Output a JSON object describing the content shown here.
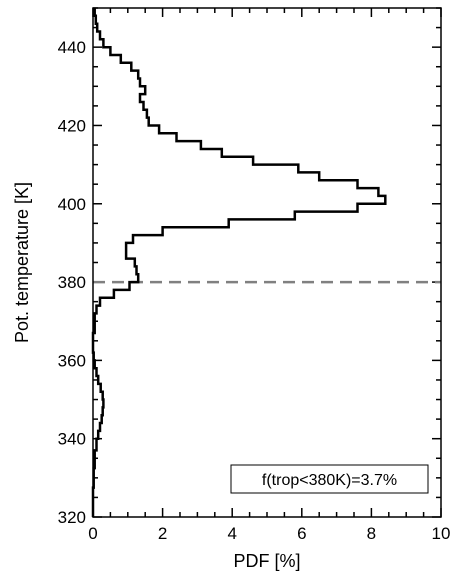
{
  "chart_data": {
    "type": "line",
    "title": "",
    "xlabel": "PDF [%]",
    "ylabel": "Pot. temperature [K]",
    "xlim": [
      0,
      10
    ],
    "ylim": [
      320,
      450
    ],
    "x_ticks": [
      0,
      2,
      4,
      6,
      8,
      10
    ],
    "x_tick_labels": [
      "0",
      "2",
      "4",
      "6",
      "8",
      "10"
    ],
    "y_ticks": [
      320,
      340,
      360,
      380,
      400,
      420,
      440
    ],
    "y_tick_labels": [
      "320",
      "340",
      "360",
      "380",
      "400",
      "420",
      "440"
    ],
    "grid": false,
    "series": [
      {
        "style": "step",
        "color": "#000000",
        "points": [
          {
            "theta": 320,
            "pdf": 0.0
          },
          {
            "theta": 325,
            "pdf": 0.0
          },
          {
            "theta": 330,
            "pdf": 0.02
          },
          {
            "theta": 335,
            "pdf": 0.05
          },
          {
            "theta": 339,
            "pdf": 0.1
          },
          {
            "theta": 341,
            "pdf": 0.15
          },
          {
            "theta": 343,
            "pdf": 0.2
          },
          {
            "theta": 345,
            "pdf": 0.25
          },
          {
            "theta": 347,
            "pdf": 0.28
          },
          {
            "theta": 349,
            "pdf": 0.3
          },
          {
            "theta": 351,
            "pdf": 0.28
          },
          {
            "theta": 353,
            "pdf": 0.22
          },
          {
            "theta": 355,
            "pdf": 0.15
          },
          {
            "theta": 357,
            "pdf": 0.1
          },
          {
            "theta": 359,
            "pdf": 0.05
          },
          {
            "theta": 361,
            "pdf": 0.02
          },
          {
            "theta": 363,
            "pdf": 0.0
          },
          {
            "theta": 371,
            "pdf": 0.05
          },
          {
            "theta": 373,
            "pdf": 0.1
          },
          {
            "theta": 375,
            "pdf": 0.2
          },
          {
            "theta": 377,
            "pdf": 0.6
          },
          {
            "theta": 379,
            "pdf": 1.05
          },
          {
            "theta": 381,
            "pdf": 1.3
          },
          {
            "theta": 383,
            "pdf": 1.25
          },
          {
            "theta": 385,
            "pdf": 1.2
          },
          {
            "theta": 387,
            "pdf": 0.95
          },
          {
            "theta": 389,
            "pdf": 0.95
          },
          {
            "theta": 391,
            "pdf": 1.15
          },
          {
            "theta": 393,
            "pdf": 2.0
          },
          {
            "theta": 395,
            "pdf": 3.9
          },
          {
            "theta": 397,
            "pdf": 5.8
          },
          {
            "theta": 399,
            "pdf": 7.6
          },
          {
            "theta": 401,
            "pdf": 8.4
          },
          {
            "theta": 403,
            "pdf": 8.2
          },
          {
            "theta": 405,
            "pdf": 7.6
          },
          {
            "theta": 407,
            "pdf": 6.5
          },
          {
            "theta": 409,
            "pdf": 5.9
          },
          {
            "theta": 411,
            "pdf": 4.6
          },
          {
            "theta": 413,
            "pdf": 3.7
          },
          {
            "theta": 415,
            "pdf": 3.1
          },
          {
            "theta": 417,
            "pdf": 2.4
          },
          {
            "theta": 419,
            "pdf": 1.9
          },
          {
            "theta": 421,
            "pdf": 1.6
          },
          {
            "theta": 423,
            "pdf": 1.55
          },
          {
            "theta": 425,
            "pdf": 1.45
          },
          {
            "theta": 427,
            "pdf": 1.35
          },
          {
            "theta": 429,
            "pdf": 1.5
          },
          {
            "theta": 431,
            "pdf": 1.35
          },
          {
            "theta": 433,
            "pdf": 1.3
          },
          {
            "theta": 435,
            "pdf": 1.1
          },
          {
            "theta": 437,
            "pdf": 0.8
          },
          {
            "theta": 439,
            "pdf": 0.5
          },
          {
            "theta": 441,
            "pdf": 0.3
          },
          {
            "theta": 443,
            "pdf": 0.2
          },
          {
            "theta": 445,
            "pdf": 0.12
          },
          {
            "theta": 447,
            "pdf": 0.08
          },
          {
            "theta": 449,
            "pdf": 0.05
          }
        ]
      }
    ],
    "reference_line": {
      "theta": 380,
      "style": "dashed",
      "color": "#808080"
    },
    "annotation": {
      "text": "f(trop<380K)=3.7%",
      "position": "bottom-right",
      "boxed": true
    }
  }
}
